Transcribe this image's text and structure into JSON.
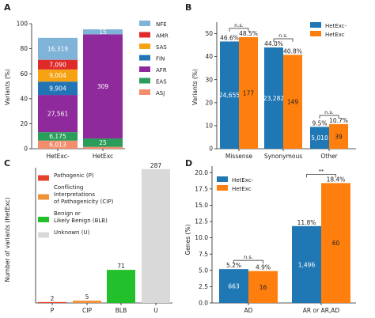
{
  "figure": {
    "panels": [
      "A",
      "B",
      "C",
      "D"
    ]
  },
  "colors": {
    "hetexc_minus": "#1f77b4",
    "hetexc": "#ff7f0e",
    "pathogenic": "#e8402a",
    "cip": "#f0923a",
    "blb": "#22c02a",
    "unknown": "#d9d9d9"
  },
  "chart_data": [
    {
      "panel": "A",
      "type": "bar",
      "stacked": true,
      "categories": [
        "HetExc-",
        "HetExc"
      ],
      "ylabel": "Variants (%)",
      "ylim": [
        0,
        100
      ],
      "yticks": [
        0,
        20,
        40,
        60,
        80,
        100
      ],
      "legend_position": "right",
      "series": [
        {
          "name": "ASJ",
          "color": "#f28e6e",
          "values": [
            6.5,
            1.5
          ],
          "labels": [
            "6,013",
            ""
          ]
        },
        {
          "name": "EAS",
          "color": "#2a9d5a",
          "values": [
            6.7,
            6.7
          ],
          "labels": [
            "6,175",
            "25"
          ]
        },
        {
          "name": "AFR",
          "color": "#8e2a9b",
          "values": [
            29.8,
            83.3
          ],
          "labels": [
            "27,561",
            "309"
          ]
        },
        {
          "name": "FIN",
          "color": "#2274b5",
          "values": [
            10.7,
            0.0
          ],
          "labels": [
            "9,904",
            ""
          ]
        },
        {
          "name": "SAS",
          "color": "#f6a313",
          "values": [
            9.7,
            0.0
          ],
          "labels": [
            "9,004",
            ""
          ]
        },
        {
          "name": "AMR",
          "color": "#e02a2a",
          "values": [
            7.7,
            0.0
          ],
          "labels": [
            "7,090",
            ""
          ]
        },
        {
          "name": "NFE",
          "color": "#7fb3d8",
          "values": [
            17.6,
            4.0
          ],
          "labels": [
            "16,319",
            "15"
          ]
        }
      ]
    },
    {
      "panel": "B",
      "type": "bar",
      "categories": [
        "Missense",
        "Synonymous",
        "Other"
      ],
      "ylabel": "Variants (%)",
      "ylim": [
        0,
        55
      ],
      "yticks": [
        0,
        10,
        20,
        30,
        40,
        50
      ],
      "legend_position": "top-right",
      "series": [
        {
          "name": "HetExc-",
          "values": [
            46.6,
            44.0,
            9.5
          ],
          "pct_labels": [
            "46.6%",
            "44.0%",
            "9.5%"
          ],
          "count_labels": [
            "24,655",
            "23,282",
            "5,010"
          ]
        },
        {
          "name": "HetExc",
          "values": [
            48.5,
            40.8,
            10.7
          ],
          "pct_labels": [
            "48.5%",
            "40.8%",
            "10.7%"
          ],
          "count_labels": [
            "177",
            "149",
            "39"
          ]
        }
      ],
      "annotations": [
        "n.s.",
        "n.s.",
        "n.s."
      ]
    },
    {
      "panel": "C",
      "type": "bar",
      "categories": [
        "P",
        "CIP",
        "BLB",
        "U"
      ],
      "values": [
        2,
        5,
        71,
        287
      ],
      "value_labels": [
        "2",
        "5",
        "71",
        "287"
      ],
      "ylabel": "Number of variants (HetExc)",
      "legend_position": "top-left",
      "legend": [
        {
          "label": "Pathogenic (P)",
          "lines": [
            "Pathogenic (P)"
          ]
        },
        {
          "label": "Conflicting Interpretations of Pathogenicity (CIP)",
          "lines": [
            "Conflicting",
            "Interpretations",
            "of Pathogenicity (CIP)"
          ]
        },
        {
          "label": "Benign or Likely Benign (BLB)",
          "lines": [
            "Benign or",
            "Likely Benign (BLB)"
          ]
        },
        {
          "label": "Unknown (U)",
          "lines": [
            "Unknown (U)"
          ]
        }
      ]
    },
    {
      "panel": "D",
      "type": "bar",
      "categories": [
        "AD",
        "AR or AR,AD"
      ],
      "ylabel": "Genes (%)",
      "ylim": [
        0,
        21
      ],
      "yticks": [
        0.0,
        2.5,
        5.0,
        7.5,
        10.0,
        12.5,
        15.0,
        17.5,
        20.0
      ],
      "ytick_labels": [
        "0.0",
        "2.5",
        "5.0",
        "7.5",
        "10.0",
        "12.5",
        "15.0",
        "17.5",
        "20.0"
      ],
      "legend_position": "top-left",
      "series": [
        {
          "name": "HetExc-",
          "values": [
            5.2,
            11.8
          ],
          "pct_labels": [
            "5.2%",
            "11.8%"
          ],
          "count_labels": [
            "663",
            "1,496"
          ]
        },
        {
          "name": "HetExc",
          "values": [
            4.9,
            18.4
          ],
          "pct_labels": [
            "4.9%",
            "18.4%"
          ],
          "count_labels": [
            "16",
            "60"
          ]
        }
      ],
      "annotations": [
        "n.s.",
        "**"
      ]
    }
  ]
}
